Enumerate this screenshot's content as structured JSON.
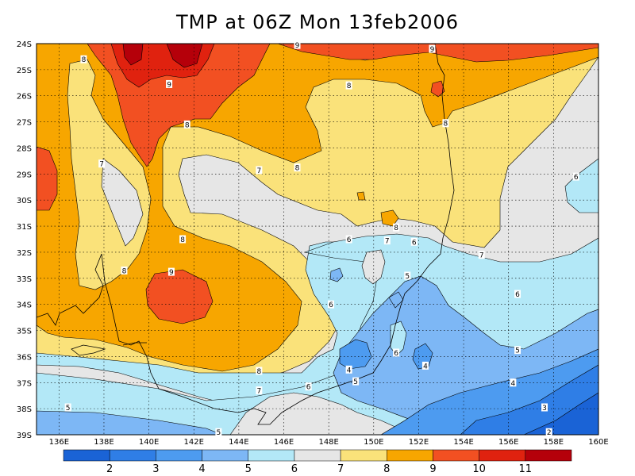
{
  "title": "TMP at 06Z Mon 13feb2006",
  "chart_data": {
    "type": "heatmap",
    "variable": "TMP",
    "lat_ticks": [
      "24S",
      "25S",
      "26S",
      "27S",
      "28S",
      "29S",
      "30S",
      "31S",
      "32S",
      "33S",
      "34S",
      "35S",
      "36S",
      "37S",
      "38S",
      "39S"
    ],
    "lon_ticks": [
      "136E",
      "138E",
      "140E",
      "142E",
      "144E",
      "146E",
      "148E",
      "150E",
      "152E",
      "154E",
      "156E",
      "158E",
      "160E"
    ],
    "lat_range": [
      -39,
      -24
    ],
    "lon_range": [
      135,
      160
    ],
    "grid": true,
    "contour_levels": [
      2,
      3,
      4,
      5,
      6,
      7,
      8,
      9,
      10,
      11
    ],
    "colorbar": {
      "labels": [
        "2",
        "3",
        "4",
        "5",
        "6",
        "7",
        "8",
        "9",
        "10",
        "11"
      ],
      "colors": [
        "#1a63d6",
        "#2f7ee6",
        "#4d9bf0",
        "#7db7f5",
        "#b3e8f7",
        "#e6e6e6",
        "#fae27a",
        "#f7a600",
        "#f25022",
        "#e0220f",
        "#b5000a"
      ]
    },
    "contour_labels": [
      {
        "text": "8",
        "lon": 137.1,
        "lat": -24.6
      },
      {
        "text": "9",
        "lon": 146.6,
        "lat": -24.05
      },
      {
        "text": "9",
        "lon": 152.6,
        "lat": -24.2
      },
      {
        "text": "9",
        "lon": 140.9,
        "lat": -25.55
      },
      {
        "text": "8",
        "lon": 148.9,
        "lat": -25.6
      },
      {
        "text": "8",
        "lon": 141.7,
        "lat": -27.1
      },
      {
        "text": "8",
        "lon": 153.2,
        "lat": -27.05
      },
      {
        "text": "7",
        "lon": 137.9,
        "lat": -28.6
      },
      {
        "text": "8",
        "lon": 146.6,
        "lat": -28.75
      },
      {
        "text": "7",
        "lon": 144.9,
        "lat": -28.85
      },
      {
        "text": "6",
        "lon": 159.0,
        "lat": -29.1
      },
      {
        "text": "8",
        "lon": 151.0,
        "lat": -31.05
      },
      {
        "text": "6",
        "lon": 148.9,
        "lat": -31.5
      },
      {
        "text": "7",
        "lon": 150.6,
        "lat": -31.55
      },
      {
        "text": "6",
        "lon": 151.8,
        "lat": -31.6
      },
      {
        "text": "8",
        "lon": 141.5,
        "lat": -31.5
      },
      {
        "text": "7",
        "lon": 154.8,
        "lat": -32.1
      },
      {
        "text": "8",
        "lon": 138.9,
        "lat": -32.7
      },
      {
        "text": "9",
        "lon": 141.0,
        "lat": -32.75
      },
      {
        "text": "5",
        "lon": 151.5,
        "lat": -32.9
      },
      {
        "text": "6",
        "lon": 156.4,
        "lat": -33.6
      },
      {
        "text": "6",
        "lon": 148.1,
        "lat": -34.0
      },
      {
        "text": "5",
        "lon": 156.4,
        "lat": -35.75
      },
      {
        "text": "6",
        "lon": 151.0,
        "lat": -35.85
      },
      {
        "text": "4",
        "lon": 148.9,
        "lat": -36.5
      },
      {
        "text": "4",
        "lon": 152.3,
        "lat": -36.35
      },
      {
        "text": "5",
        "lon": 149.2,
        "lat": -36.95
      },
      {
        "text": "8",
        "lon": 144.9,
        "lat": -36.55
      },
      {
        "text": "6",
        "lon": 147.1,
        "lat": -37.15
      },
      {
        "text": "7",
        "lon": 144.9,
        "lat": -37.3
      },
      {
        "text": "4",
        "lon": 156.2,
        "lat": -37.0
      },
      {
        "text": "5",
        "lon": 136.4,
        "lat": -37.95
      },
      {
        "text": "3",
        "lon": 157.6,
        "lat": -37.95
      },
      {
        "text": "5",
        "lon": 143.1,
        "lat": -38.9
      },
      {
        "text": "2",
        "lon": 157.8,
        "lat": -38.9
      }
    ]
  }
}
